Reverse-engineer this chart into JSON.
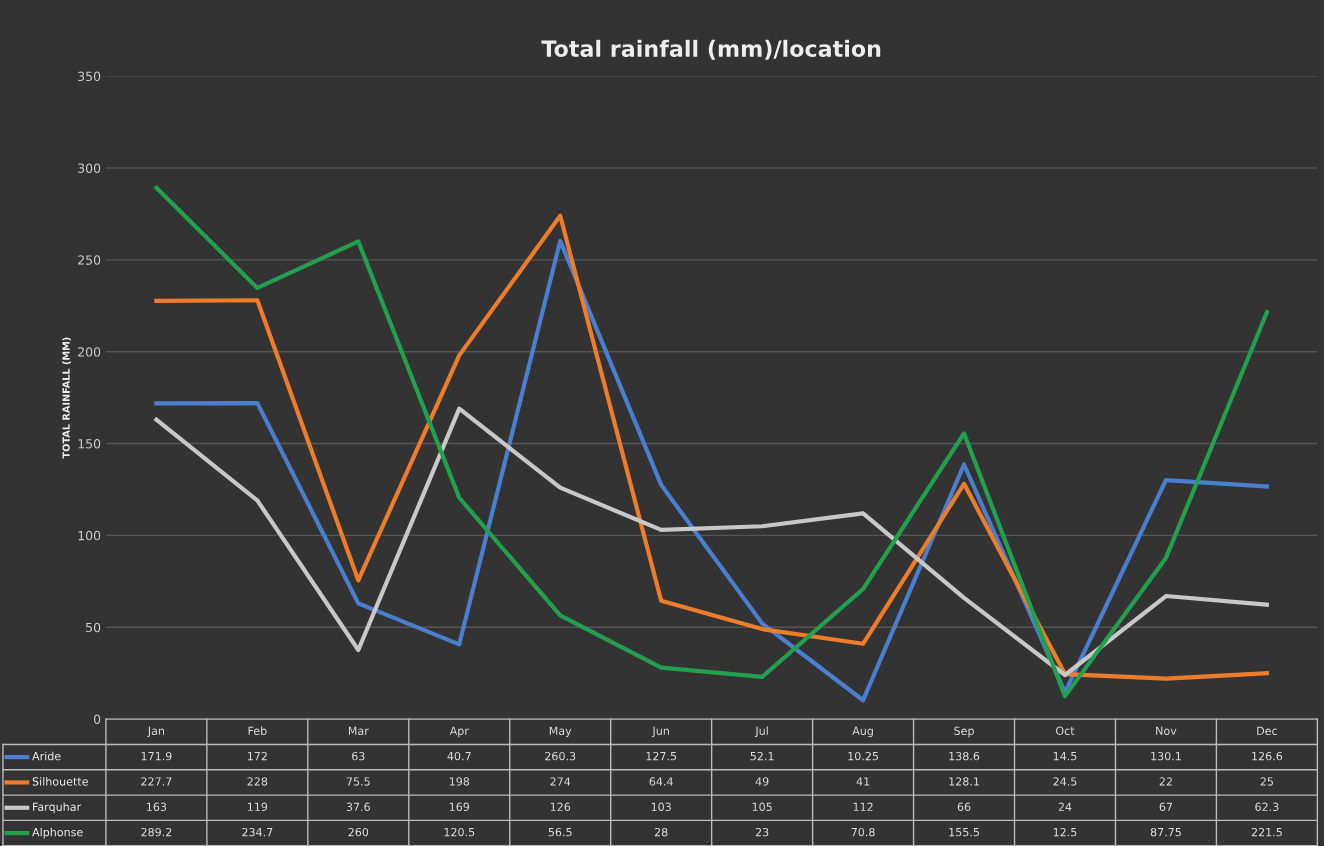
{
  "chart_data": {
    "type": "line",
    "title": "Total rainfall (mm)/location",
    "ylabel": "TOTAL RAINFALL (MM)",
    "categories": [
      "Jan",
      "Feb",
      "Mar",
      "Apr",
      "May",
      "Jun",
      "Jul",
      "Aug",
      "Sep",
      "Oct",
      "Nov",
      "Dec"
    ],
    "series": [
      {
        "name": "Aride",
        "color": "#4a7fd0",
        "values": [
          171.9,
          172,
          63,
          40.7,
          260.3,
          127.5,
          52.1,
          10.25,
          138.6,
          14.5,
          130.1,
          126.6
        ]
      },
      {
        "name": "Silhouette",
        "color": "#ee7d2b",
        "values": [
          227.7,
          228,
          75.5,
          198,
          274,
          64.4,
          49,
          41,
          128.1,
          24.5,
          22,
          25
        ]
      },
      {
        "name": "Farquhar",
        "color": "#c8c8c8",
        "values": [
          163,
          119,
          37.6,
          169,
          126,
          103,
          105,
          112,
          66,
          24,
          67,
          62.3
        ]
      },
      {
        "name": "Alphonse",
        "color": "#22a050",
        "values": [
          289.2,
          234.7,
          260,
          120.5,
          56.5,
          28,
          23,
          70.8,
          155.5,
          12.5,
          87.75,
          221.5
        ]
      }
    ],
    "ylim": [
      0,
      350
    ],
    "yticks": [
      0,
      50,
      100,
      150,
      200,
      250,
      300,
      350
    ],
    "grid": "y",
    "legend": "bottom",
    "data_labels": true,
    "marker": "none",
    "line_style": "solid"
  }
}
